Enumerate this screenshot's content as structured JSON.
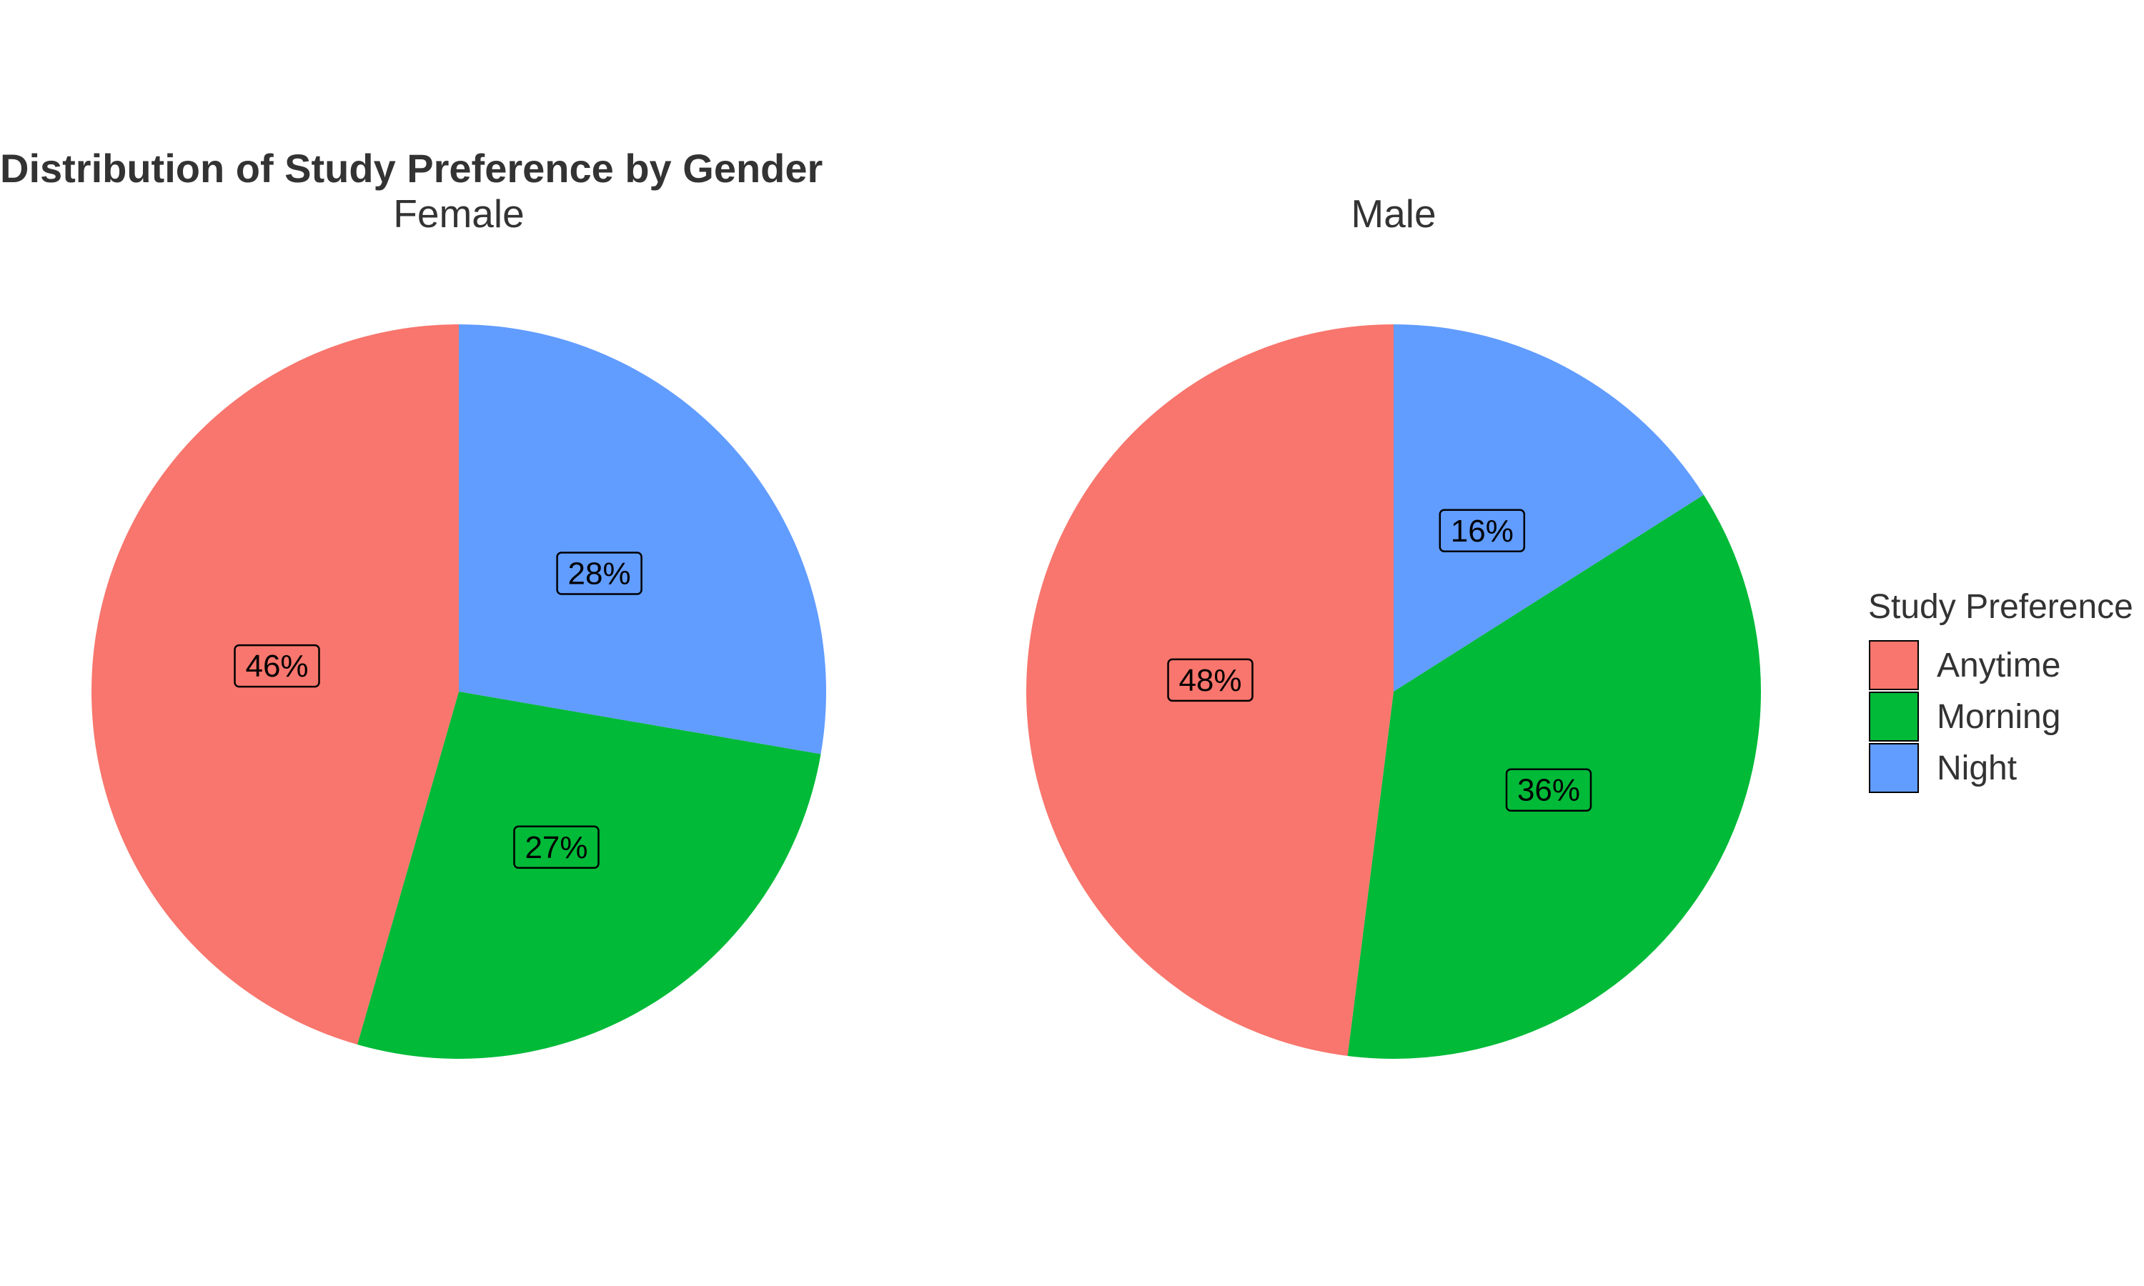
{
  "chart_data": {
    "type": "pie",
    "title": "Distribution of Study Preference by Gender",
    "categories": [
      "Anytime",
      "Morning",
      "Night"
    ],
    "colors": {
      "Anytime": "#F8766D",
      "Morning": "#00BA38",
      "Night": "#619CFF"
    },
    "facets": [
      {
        "name": "Female",
        "values": {
          "Night": 0.28,
          "Morning": 0.27,
          "Anytime": 0.46
        },
        "labels": {
          "Night": "28%",
          "Morning": "27%",
          "Anytime": "46%"
        }
      },
      {
        "name": "Male",
        "values": {
          "Night": 0.16,
          "Morning": 0.36,
          "Anytime": 0.48
        },
        "labels": {
          "Night": "16%",
          "Morning": "36%",
          "Anytime": "48%"
        }
      }
    ],
    "legend": {
      "title": "Study Preference",
      "items": [
        "Anytime",
        "Morning",
        "Night"
      ],
      "position": "right"
    }
  }
}
